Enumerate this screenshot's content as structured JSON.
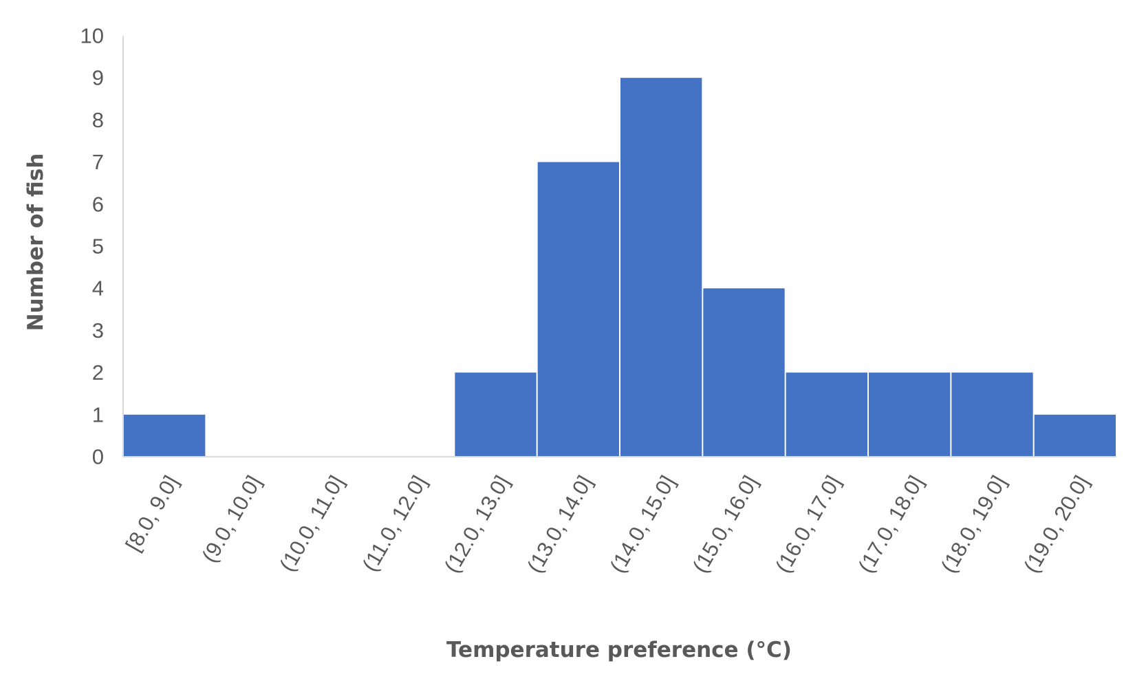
{
  "chart_data": {
    "type": "bar",
    "title": "",
    "xlabel": "Temperature preference (°C)",
    "ylabel": "Number of fish",
    "categories": [
      "[8.0, 9.0]",
      "(9.0, 10.0]",
      "(10.0, 11.0]",
      "(11.0, 12.0]",
      "(12.0, 13.0]",
      "(13.0, 14.0]",
      "(14.0, 15.0]",
      "(15.0, 16.0]",
      "(16.0, 17.0]",
      "(17.0, 18.0]",
      "(18.0, 19.0]",
      "(19.0, 20.0]"
    ],
    "values": [
      1,
      0,
      0,
      0,
      2,
      7,
      9,
      4,
      2,
      2,
      2,
      1
    ],
    "ylim": [
      0,
      10
    ],
    "yticks": [
      0,
      1,
      2,
      3,
      4,
      5,
      6,
      7,
      8,
      9,
      10
    ],
    "grid": false,
    "legend": "none",
    "colors": {
      "bar": "#4472C4",
      "axis": "#D9D9D9",
      "text": "#595959"
    }
  }
}
